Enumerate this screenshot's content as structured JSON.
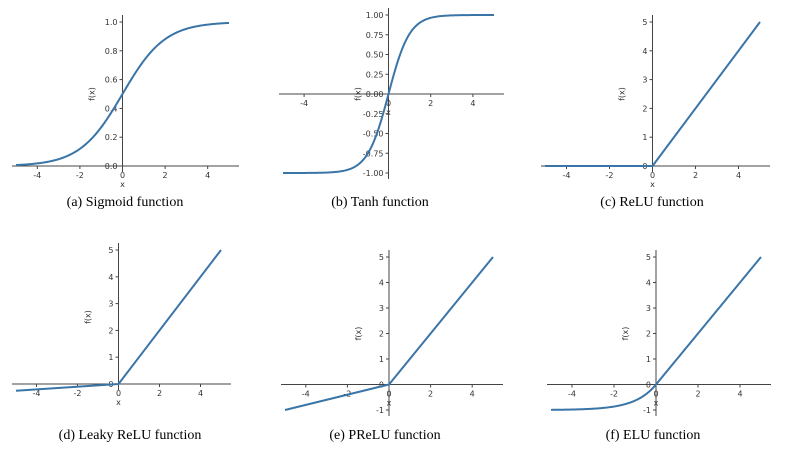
{
  "figure": {
    "curve_color": "#3a75a8",
    "axis_color": "#444444"
  },
  "chart_data": [
    {
      "type": "line",
      "caption": "(a) Sigmoid function",
      "xlabel": "x",
      "ylabel": "f(x)",
      "xlim": [
        -5,
        5
      ],
      "ylim": [
        0,
        1
      ],
      "xticks": [
        -4,
        -2,
        0,
        2,
        4
      ],
      "yticks": [
        0.0,
        0.2,
        0.4,
        0.6,
        0.8,
        1.0
      ],
      "xtick_labels": [
        "-4",
        "-2",
        "0",
        "2",
        "4"
      ],
      "ytick_labels": [
        "0.0",
        "0.2",
        "0.4",
        "0.6",
        "0.8",
        "1.0"
      ],
      "x": [
        -5,
        -4,
        -3,
        -2,
        -1,
        -0.5,
        0,
        0.5,
        1,
        2,
        3,
        4,
        5
      ],
      "values": [
        0.007,
        0.018,
        0.047,
        0.119,
        0.269,
        0.378,
        0.5,
        0.622,
        0.731,
        0.881,
        0.953,
        0.982,
        0.993
      ],
      "grid": false
    },
    {
      "type": "line",
      "caption": "(b) Tanh function",
      "xlabel": "x",
      "ylabel": "f(x)",
      "xlim": [
        -5,
        5
      ],
      "ylim": [
        -1,
        1
      ],
      "xticks": [
        -4,
        0,
        2,
        4
      ],
      "yticks": [
        1.0,
        0.75,
        0.5,
        0.25,
        0.0,
        -0.25,
        -0.5,
        -0.75,
        -1.0
      ],
      "xtick_labels": [
        "-4",
        "0",
        "2",
        "4"
      ],
      "ytick_labels": [
        "1.00",
        "0.75",
        "0.50",
        "0.25",
        "0.00",
        "-0.25",
        "-0.50",
        "-0.75",
        "-1.00"
      ],
      "x": [
        -5,
        -3,
        -2,
        -1.5,
        -1,
        -0.5,
        0,
        0.5,
        1,
        1.5,
        2,
        3,
        5
      ],
      "values": [
        -1.0,
        -0.995,
        -0.964,
        -0.905,
        -0.762,
        -0.462,
        0,
        0.462,
        0.762,
        0.905,
        0.964,
        0.995,
        1.0
      ],
      "grid": false
    },
    {
      "type": "line",
      "caption": "(c) ReLU function",
      "xlabel": "x",
      "ylabel": "f(x)",
      "xlim": [
        -5,
        5
      ],
      "ylim": [
        0,
        5
      ],
      "xticks": [
        -4,
        -2,
        0,
        2,
        4
      ],
      "yticks": [
        0,
        1,
        2,
        3,
        4,
        5
      ],
      "xtick_labels": [
        "-4",
        "-2",
        "0",
        "2",
        "4"
      ],
      "ytick_labels": [
        "0",
        "1",
        "2",
        "3",
        "4",
        "5"
      ],
      "x": [
        -5,
        0,
        5
      ],
      "values": [
        0,
        0,
        5
      ],
      "grid": false
    },
    {
      "type": "line",
      "caption": "(d) Leaky ReLU function",
      "xlabel": "x",
      "ylabel": "f(x)",
      "xlim": [
        -5,
        5
      ],
      "ylim": [
        0,
        5
      ],
      "xticks": [
        -4,
        -2,
        0,
        2,
        4
      ],
      "yticks": [
        0,
        1,
        2,
        3,
        4,
        5
      ],
      "xtick_labels": [
        "-4",
        "-2",
        "0",
        "2",
        "4"
      ],
      "ytick_labels": [
        "0",
        "1",
        "2",
        "3",
        "4",
        "5"
      ],
      "x": [
        -5,
        0,
        5
      ],
      "values": [
        -0.25,
        0,
        5
      ],
      "grid": false
    },
    {
      "type": "line",
      "caption": "(e) PReLU function",
      "xlabel": "x",
      "ylabel": "f(x)",
      "xlim": [
        -5,
        5
      ],
      "ylim": [
        -1,
        5
      ],
      "xticks": [
        -4,
        -2,
        0,
        2,
        4
      ],
      "yticks": [
        -1,
        0,
        1,
        2,
        3,
        4,
        5
      ],
      "xtick_labels": [
        "-4",
        "-2",
        "0",
        "2",
        "4"
      ],
      "ytick_labels": [
        "-1",
        "0",
        "1",
        "2",
        "3",
        "4",
        "5"
      ],
      "x": [
        -5,
        0,
        5
      ],
      "values": [
        -1,
        0,
        5
      ],
      "grid": false
    },
    {
      "type": "line",
      "caption": "(f) ELU function",
      "xlabel": "x",
      "ylabel": "f(x)",
      "xlim": [
        -5,
        5
      ],
      "ylim": [
        -1,
        5
      ],
      "xticks": [
        -4,
        -2,
        0,
        2,
        4
      ],
      "yticks": [
        -1,
        0,
        1,
        2,
        3,
        4,
        5
      ],
      "xtick_labels": [
        "-4",
        "-2",
        "0",
        "2",
        "4"
      ],
      "ytick_labels": [
        "-1",
        "0",
        "1",
        "2",
        "3",
        "4",
        "5"
      ],
      "x": [
        -5,
        -4,
        -3,
        -2,
        -1.5,
        -1,
        -0.5,
        0,
        5
      ],
      "values": [
        -0.99,
        -0.98,
        -0.95,
        -0.86,
        -0.78,
        -0.63,
        -0.39,
        0,
        5
      ],
      "grid": false
    }
  ]
}
